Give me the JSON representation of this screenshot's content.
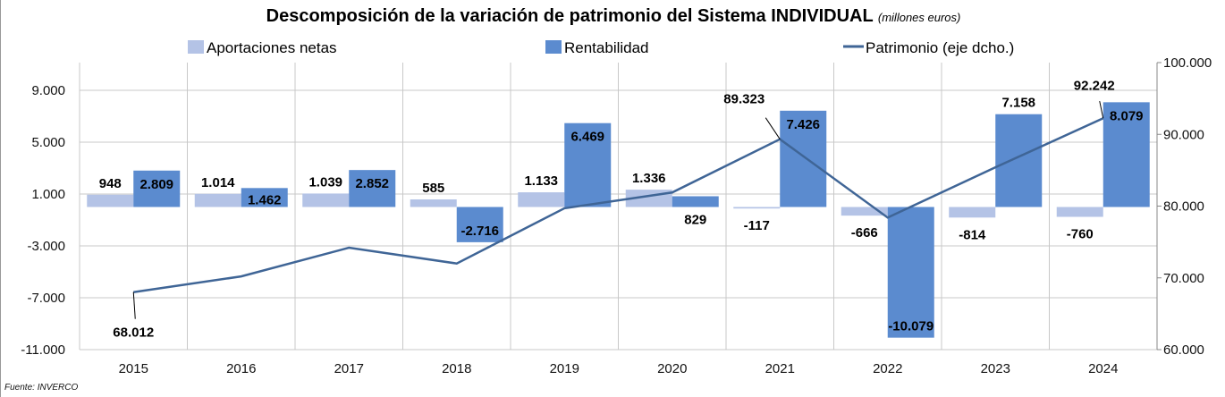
{
  "chart_data": {
    "type": "bar",
    "title": "Descomposición de la variación de patrimonio del Sistema INDIVIDUAL",
    "subtitle": "(millones euros)",
    "categories": [
      "2015",
      "2016",
      "2017",
      "2018",
      "2019",
      "2020",
      "2021",
      "2022",
      "2023",
      "2024"
    ],
    "series": [
      {
        "name": "Aportaciones netas",
        "type": "bar",
        "axis": "left",
        "color": "#b4c3e6",
        "values": [
          948,
          1014,
          1039,
          585,
          1133,
          1336,
          -117,
          -666,
          -814,
          -760
        ],
        "labels": [
          "948",
          "1.014",
          "1.039",
          "585",
          "1.133",
          "1.336",
          "-117",
          "-666",
          "-814",
          "-760"
        ]
      },
      {
        "name": "Rentabilidad",
        "type": "bar",
        "axis": "left",
        "color": "#5b8bcf",
        "values": [
          2809,
          1462,
          2852,
          -2716,
          6469,
          829,
          7426,
          -10079,
          7158,
          8079
        ],
        "labels": [
          "2.809",
          "1.462",
          "2.852",
          "-2.716",
          "6.469",
          "829",
          "7.426",
          "-10.079",
          "7.158",
          "8.079"
        ]
      },
      {
        "name": "Patrimonio (eje dcho.)",
        "type": "line",
        "axis": "right",
        "color": "#3f6596",
        "values": [
          68012,
          70200,
          74200,
          72000,
          79700,
          81900,
          89323,
          78400,
          85400,
          92242
        ],
        "labels": [
          "68.012",
          "",
          "",
          "",
          "",
          "",
          "89.323",
          "",
          "",
          "92.242"
        ]
      }
    ],
    "left_axis": {
      "ylim": [
        -11000,
        11000
      ],
      "ticks": [
        9000,
        5000,
        1000,
        -3000,
        -7000,
        -11000
      ],
      "tick_labels": [
        "9.000",
        "5.000",
        "1.000",
        "-3.000",
        "-7.000",
        "-11.000"
      ]
    },
    "right_axis": {
      "ylim": [
        60000,
        100000
      ],
      "ticks": [
        100000,
        90000,
        80000,
        70000,
        60000
      ],
      "tick_labels": [
        "100.000",
        "90.000",
        "80.000",
        "70.000",
        "60.000"
      ]
    },
    "grid": true,
    "legend": "top"
  },
  "source": "Fuente: INVERCO"
}
